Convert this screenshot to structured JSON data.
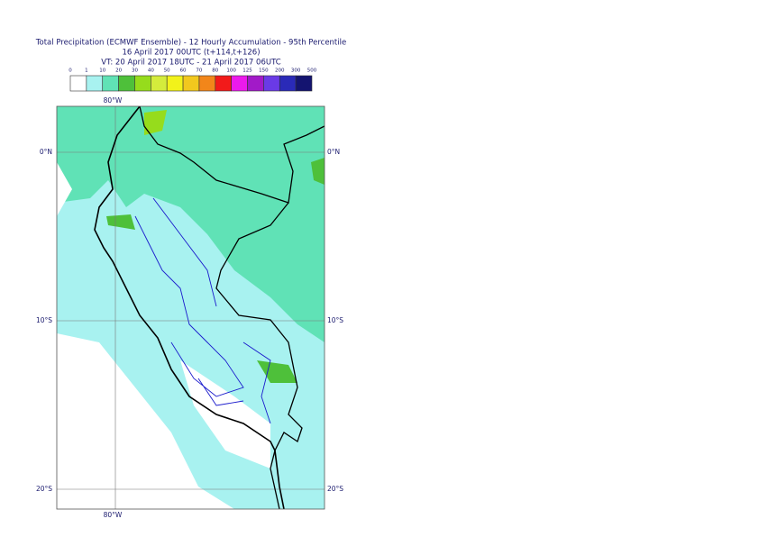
{
  "header": {
    "title": "Total Precipitation (ECMWF Ensemble) - 12 Hourly Accumulation - 95th Percentile",
    "subtitle": "16 April 2017 00UTC (t+114,t+126)",
    "valid_time": "VT: 20 April 2017 18UTC - 21 April 2017 06UTC"
  },
  "legend": {
    "levels": [
      0,
      1,
      10,
      20,
      30,
      40,
      50,
      60,
      70,
      80,
      100,
      125,
      150,
      200,
      300,
      500
    ],
    "colors": [
      "#ffffff",
      "#a8f2f0",
      "#60e2b6",
      "#4ec03a",
      "#96dc1c",
      "#d4ec3c",
      "#f2f21a",
      "#f2c81e",
      "#f2861a",
      "#f21a1a",
      "#ec1aec",
      "#a21ac8",
      "#6a3ae6",
      "#2a2ab8",
      "#141470"
    ]
  },
  "grid_labels": {
    "lon": [
      "80°W"
    ],
    "lat": [
      "0°N",
      "10°S",
      "20°S"
    ]
  }
}
